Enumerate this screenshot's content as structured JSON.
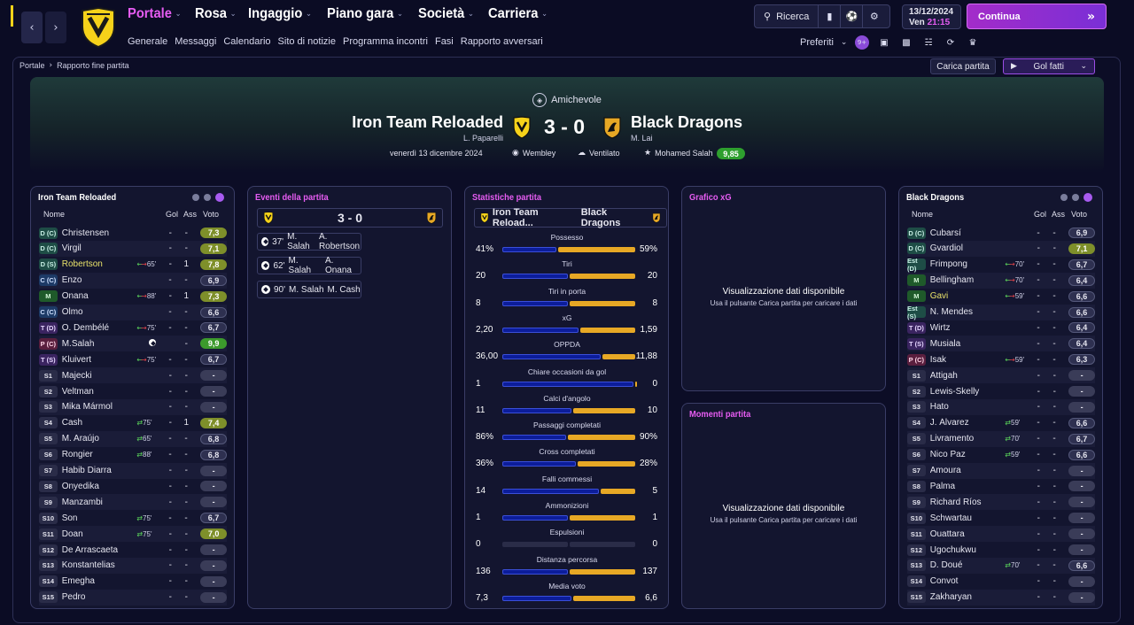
{
  "nav": {
    "back": "‹",
    "forward": "›",
    "menu": [
      {
        "label": "Portale",
        "active": true
      },
      {
        "label": "Rosa",
        "active": false
      },
      {
        "label": "Ingaggio",
        "active": false
      },
      {
        "label": "Piano gara",
        "active": false
      },
      {
        "label": "Società",
        "active": false
      },
      {
        "label": "Carriera",
        "active": false
      }
    ],
    "submenu": [
      "Generale",
      "Messaggi",
      "Calendario",
      "Sito di notizie",
      "Programma incontri",
      "Fasi",
      "Rapporto avversari"
    ],
    "search_label": "Ricerca",
    "date": "13/12/2024",
    "weekday": "Ven",
    "time": "21:15",
    "continue_label": "Continua",
    "favorites_label": "Preferiti"
  },
  "breadcrumb": {
    "root": "Portale",
    "current": "Rapporto fine partita"
  },
  "actions": {
    "load_match": "Carica partita",
    "goals": "Gol fatti"
  },
  "match": {
    "competition": "Amichevole",
    "home": {
      "name": "Iron Team Reloaded",
      "coach": "L. Paparelli"
    },
    "away": {
      "name": "Black Dragons",
      "coach": "M. Lai"
    },
    "score": "3 - 0",
    "date": "venerdì 13 dicembre 2024",
    "stadium": "Wembley",
    "weather": "Ventilato",
    "mom_name": "Mohamed Salah",
    "mom_rating": "9,85"
  },
  "colors": {
    "accent": "#e65cf2",
    "home_bar": "#0c1d9a",
    "away_bar": "#e7a825",
    "rating_green": "#3c9a2c"
  },
  "home_panel": {
    "title": "Iron Team Reloaded",
    "headers": {
      "name": "Nome",
      "goals": "Gol",
      "assists": "Ass",
      "rating": "Voto"
    },
    "players": [
      {
        "pos": "D (C)",
        "cls": "d",
        "name": "Christensen",
        "sub": "",
        "min": "",
        "gol": "-",
        "ass": "-",
        "voto": "7,3",
        "vc": "y"
      },
      {
        "pos": "D (C)",
        "cls": "d",
        "name": "Virgil",
        "sub": "",
        "min": "",
        "gol": "-",
        "ass": "-",
        "voto": "7,1",
        "vc": "y"
      },
      {
        "pos": "D (S)",
        "cls": "d",
        "name": "Robertson",
        "yellow": true,
        "sub": "io",
        "min": "65'",
        "gol": "-",
        "ass": "1",
        "voto": "7,8",
        "vc": "y"
      },
      {
        "pos": "C (C)",
        "cls": "c",
        "name": "Enzo",
        "sub": "",
        "min": "",
        "gol": "-",
        "ass": "-",
        "voto": "6,9",
        "vc": "n"
      },
      {
        "pos": "M",
        "cls": "m",
        "name": "Onana",
        "sub": "io",
        "min": "88'",
        "gol": "-",
        "ass": "1",
        "voto": "7,3",
        "vc": "y"
      },
      {
        "pos": "C (C)",
        "cls": "c",
        "name": "Olmo",
        "sub": "",
        "min": "",
        "gol": "-",
        "ass": "-",
        "voto": "6,6",
        "vc": "n"
      },
      {
        "pos": "T (D)",
        "cls": "t",
        "name": "O. Dembélé",
        "sub": "io",
        "min": "75'",
        "gol": "-",
        "ass": "-",
        "voto": "6,7",
        "vc": "n"
      },
      {
        "pos": "P (C)",
        "cls": "p",
        "name": "M.Salah",
        "sub": "goal",
        "min": "",
        "gol": "3",
        "ass": "-",
        "voto": "9,9",
        "vc": "g"
      },
      {
        "pos": "T (S)",
        "cls": "t",
        "name": "Kluivert",
        "sub": "io",
        "min": "75'",
        "gol": "-",
        "ass": "-",
        "voto": "6,7",
        "vc": "n"
      },
      {
        "pos": "S1",
        "cls": "s",
        "name": "Majecki",
        "sub": "",
        "min": "",
        "gol": "-",
        "ass": "-",
        "voto": "-",
        "vc": "none"
      },
      {
        "pos": "S2",
        "cls": "s",
        "name": "Veltman",
        "sub": "",
        "min": "",
        "gol": "-",
        "ass": "-",
        "voto": "-",
        "vc": "none"
      },
      {
        "pos": "S3",
        "cls": "s",
        "name": "Mika Mármol",
        "sub": "",
        "min": "",
        "gol": "-",
        "ass": "-",
        "voto": "-",
        "vc": "none"
      },
      {
        "pos": "S4",
        "cls": "s",
        "name": "Cash",
        "sub": "in",
        "min": "75'",
        "gol": "-",
        "ass": "1",
        "voto": "7,4",
        "vc": "y"
      },
      {
        "pos": "S5",
        "cls": "s",
        "name": "M. Araújo",
        "sub": "in",
        "min": "65'",
        "gol": "-",
        "ass": "-",
        "voto": "6,8",
        "vc": "n"
      },
      {
        "pos": "S6",
        "cls": "s",
        "name": "Rongier",
        "sub": "in",
        "min": "88'",
        "gol": "-",
        "ass": "-",
        "voto": "6,8",
        "vc": "n"
      },
      {
        "pos": "S7",
        "cls": "s",
        "name": "Habib Diarra",
        "sub": "",
        "min": "",
        "gol": "-",
        "ass": "-",
        "voto": "-",
        "vc": "none"
      },
      {
        "pos": "S8",
        "cls": "s",
        "name": "Onyedika",
        "sub": "",
        "min": "",
        "gol": "-",
        "ass": "-",
        "voto": "-",
        "vc": "none"
      },
      {
        "pos": "S9",
        "cls": "s",
        "name": "Manzambi",
        "sub": "",
        "min": "",
        "gol": "-",
        "ass": "-",
        "voto": "-",
        "vc": "none"
      },
      {
        "pos": "S10",
        "cls": "s",
        "name": "Son",
        "sub": "in",
        "min": "75'",
        "gol": "-",
        "ass": "-",
        "voto": "6,7",
        "vc": "n"
      },
      {
        "pos": "S11",
        "cls": "s",
        "name": "Doan",
        "sub": "in",
        "min": "75'",
        "gol": "-",
        "ass": "-",
        "voto": "7,0",
        "vc": "y"
      },
      {
        "pos": "S12",
        "cls": "s",
        "name": "De Arrascaeta",
        "sub": "",
        "min": "",
        "gol": "-",
        "ass": "-",
        "voto": "-",
        "vc": "none"
      },
      {
        "pos": "S13",
        "cls": "s",
        "name": "Konstantelias",
        "sub": "",
        "min": "",
        "gol": "-",
        "ass": "-",
        "voto": "-",
        "vc": "none"
      },
      {
        "pos": "S14",
        "cls": "s",
        "name": "Emegha",
        "sub": "",
        "min": "",
        "gol": "-",
        "ass": "-",
        "voto": "-",
        "vc": "none"
      },
      {
        "pos": "S15",
        "cls": "s",
        "name": "Pedro",
        "sub": "",
        "min": "",
        "gol": "-",
        "ass": "-",
        "voto": "-",
        "vc": "none"
      }
    ]
  },
  "events": {
    "title": "Eventi della partita",
    "score": "3 - 0",
    "items": [
      {
        "min": "37'",
        "scorer": "M. Salah",
        "assist": "A. Robertson"
      },
      {
        "min": "62'",
        "scorer": "M. Salah",
        "assist": "A. Onana"
      },
      {
        "min": "90'",
        "scorer": "M. Salah",
        "assist": "M. Cash"
      }
    ]
  },
  "stats": {
    "title": "Statistiche partita",
    "home": "Iron Team Reload...",
    "away": "Black Dragons",
    "rows": [
      {
        "label": "Possesso",
        "home": "41%",
        "away": "59%",
        "hv": 41,
        "av": 59
      },
      {
        "label": "Tiri",
        "home": "20",
        "away": "20",
        "hv": 20,
        "av": 20
      },
      {
        "label": "Tiri in porta",
        "home": "8",
        "away": "8",
        "hv": 8,
        "av": 8
      },
      {
        "label": "xG",
        "home": "2,20",
        "away": "1,59",
        "hv": 2.2,
        "av": 1.59
      },
      {
        "label": "OPPDA",
        "home": "36,00",
        "away": "11,88",
        "hv": 36,
        "av": 11.88
      },
      {
        "label": "Chiare occasioni da gol",
        "home": "1",
        "away": "0",
        "hv": 1,
        "av": 0
      },
      {
        "label": "Calci d'angolo",
        "home": "11",
        "away": "10",
        "hv": 11,
        "av": 10
      },
      {
        "label": "Passaggi completati",
        "home": "86%",
        "away": "90%",
        "hv": 86,
        "av": 90
      },
      {
        "label": "Cross completati",
        "home": "36%",
        "away": "28%",
        "hv": 36,
        "av": 28
      },
      {
        "label": "Falli commessi",
        "home": "14",
        "away": "5",
        "hv": 14,
        "av": 5
      },
      {
        "label": "Ammonizioni",
        "home": "1",
        "away": "1",
        "hv": 1,
        "av": 1
      },
      {
        "label": "Espulsioni",
        "home": "0",
        "away": "0",
        "hv": 0,
        "av": 0
      },
      {
        "label": "Distanza percorsa",
        "home": "136",
        "away": "137",
        "hv": 136,
        "av": 137
      },
      {
        "label": "Media voto",
        "home": "7,3",
        "away": "6,6",
        "hv": 7.3,
        "av": 6.6
      }
    ]
  },
  "xg_panel": {
    "title": "Grafico xG",
    "msg": "Visualizzazione dati disponibile",
    "hint": "Usa il pulsante Carica partita per caricare i dati"
  },
  "moments_panel": {
    "title": "Momenti partita",
    "msg": "Visualizzazione dati disponibile",
    "hint": "Usa il pulsante Carica partita per caricare i dati"
  },
  "away_panel": {
    "title": "Black Dragons",
    "headers": {
      "name": "Nome",
      "goals": "Gol",
      "assists": "Ass",
      "rating": "Voto"
    },
    "players": [
      {
        "pos": "D (C)",
        "cls": "d",
        "name": "Cubarsí",
        "sub": "",
        "min": "",
        "gol": "-",
        "ass": "-",
        "voto": "6,9",
        "vc": "n"
      },
      {
        "pos": "D (C)",
        "cls": "d",
        "name": "Gvardiol",
        "sub": "",
        "min": "",
        "gol": "-",
        "ass": "-",
        "voto": "7,1",
        "vc": "y"
      },
      {
        "pos": "Est (D)",
        "cls": "d",
        "name": "Frimpong",
        "sub": "io",
        "min": "70'",
        "gol": "-",
        "ass": "-",
        "voto": "6,7",
        "vc": "n"
      },
      {
        "pos": "M",
        "cls": "m",
        "name": "Bellingham",
        "sub": "io",
        "min": "70'",
        "gol": "-",
        "ass": "-",
        "voto": "6,4",
        "vc": "n"
      },
      {
        "pos": "M",
        "cls": "m",
        "name": "Gavi",
        "yellow": true,
        "sub": "io",
        "min": "59'",
        "gol": "-",
        "ass": "-",
        "voto": "6,6",
        "vc": "n"
      },
      {
        "pos": "Est (S)",
        "cls": "d",
        "name": "N. Mendes",
        "sub": "",
        "min": "",
        "gol": "-",
        "ass": "-",
        "voto": "6,6",
        "vc": "n"
      },
      {
        "pos": "T (D)",
        "cls": "t",
        "name": "Wirtz",
        "sub": "",
        "min": "",
        "gol": "-",
        "ass": "-",
        "voto": "6,4",
        "vc": "n"
      },
      {
        "pos": "T (S)",
        "cls": "t",
        "name": "Musiala",
        "sub": "",
        "min": "",
        "gol": "-",
        "ass": "-",
        "voto": "6,4",
        "vc": "n"
      },
      {
        "pos": "P (C)",
        "cls": "p",
        "name": "Isak",
        "sub": "io",
        "min": "59'",
        "gol": "-",
        "ass": "-",
        "voto": "6,3",
        "vc": "n"
      },
      {
        "pos": "S1",
        "cls": "s",
        "name": "Attigah",
        "sub": "",
        "min": "",
        "gol": "-",
        "ass": "-",
        "voto": "-",
        "vc": "none"
      },
      {
        "pos": "S2",
        "cls": "s",
        "name": "Lewis-Skelly",
        "sub": "",
        "min": "",
        "gol": "-",
        "ass": "-",
        "voto": "-",
        "vc": "none"
      },
      {
        "pos": "S3",
        "cls": "s",
        "name": "Hato",
        "sub": "",
        "min": "",
        "gol": "-",
        "ass": "-",
        "voto": "-",
        "vc": "none"
      },
      {
        "pos": "S4",
        "cls": "s",
        "name": "J. Álvarez",
        "sub": "in",
        "min": "59'",
        "gol": "-",
        "ass": "-",
        "voto": "6,6",
        "vc": "n"
      },
      {
        "pos": "S5",
        "cls": "s",
        "name": "Livramento",
        "sub": "in",
        "min": "70'",
        "gol": "-",
        "ass": "-",
        "voto": "6,7",
        "vc": "n"
      },
      {
        "pos": "S6",
        "cls": "s",
        "name": "Nico Paz",
        "sub": "in",
        "min": "59'",
        "gol": "-",
        "ass": "-",
        "voto": "6,6",
        "vc": "n"
      },
      {
        "pos": "S7",
        "cls": "s",
        "name": "Amoura",
        "sub": "",
        "min": "",
        "gol": "-",
        "ass": "-",
        "voto": "-",
        "vc": "none"
      },
      {
        "pos": "S8",
        "cls": "s",
        "name": "Palma",
        "sub": "",
        "min": "",
        "gol": "-",
        "ass": "-",
        "voto": "-",
        "vc": "none"
      },
      {
        "pos": "S9",
        "cls": "s",
        "name": "Richard Ríos",
        "sub": "",
        "min": "",
        "gol": "-",
        "ass": "-",
        "voto": "-",
        "vc": "none"
      },
      {
        "pos": "S10",
        "cls": "s",
        "name": "Schwartau",
        "sub": "",
        "min": "",
        "gol": "-",
        "ass": "-",
        "voto": "-",
        "vc": "none"
      },
      {
        "pos": "S11",
        "cls": "s",
        "name": "Ouattara",
        "sub": "",
        "min": "",
        "gol": "-",
        "ass": "-",
        "voto": "-",
        "vc": "none"
      },
      {
        "pos": "S12",
        "cls": "s",
        "name": "Ugochukwu",
        "sub": "",
        "min": "",
        "gol": "-",
        "ass": "-",
        "voto": "-",
        "vc": "none"
      },
      {
        "pos": "S13",
        "cls": "s",
        "name": "D. Doué",
        "sub": "in",
        "min": "70'",
        "gol": "-",
        "ass": "-",
        "voto": "6,6",
        "vc": "n"
      },
      {
        "pos": "S14",
        "cls": "s",
        "name": "Convot",
        "sub": "",
        "min": "",
        "gol": "-",
        "ass": "-",
        "voto": "-",
        "vc": "none"
      },
      {
        "pos": "S15",
        "cls": "s",
        "name": "Zakharyan",
        "sub": "",
        "min": "",
        "gol": "-",
        "ass": "-",
        "voto": "-",
        "vc": "none"
      }
    ]
  }
}
